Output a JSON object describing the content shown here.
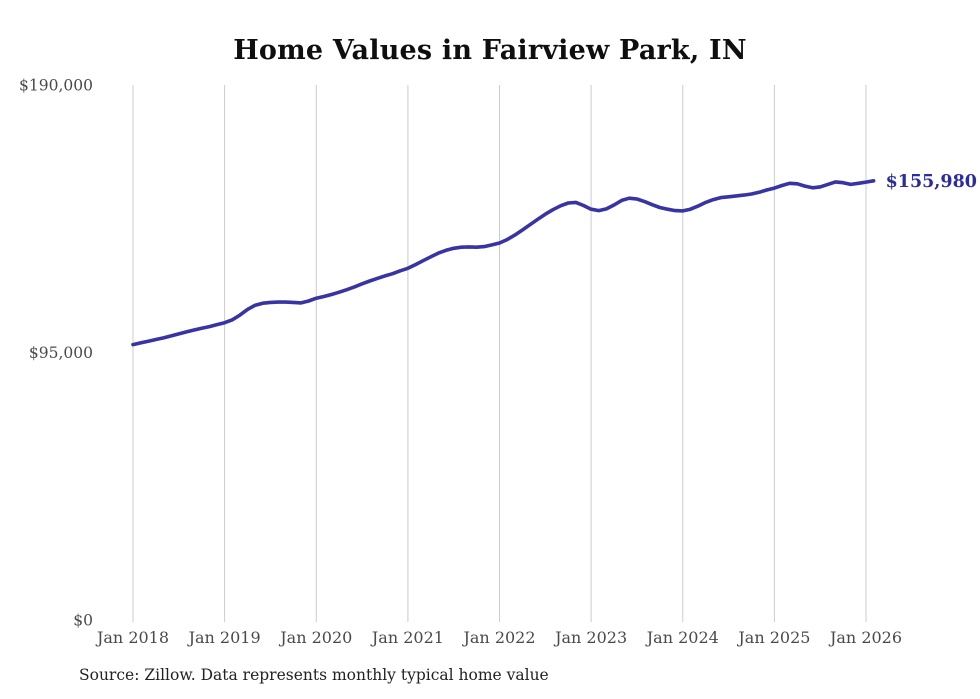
{
  "chart_data": {
    "type": "line",
    "title": "Home Values in Fairview Park, IN",
    "source": "Source: Zillow. Data represents monthly typical home value",
    "end_label": "$155,980",
    "latest_value": 155980,
    "ylim": [
      0,
      190000
    ],
    "grid": "vertical-only",
    "x_tick_labels": [
      "Jan 2018",
      "Jan 2019",
      "Jan 2020",
      "Jan 2021",
      "Jan 2022",
      "Jan 2023",
      "Jan 2024",
      "Jan 2025",
      "Jan 2026"
    ],
    "y_ticks": [
      {
        "label": "$190,000",
        "value": 190000
      },
      {
        "label": "$95,000",
        "value": 95000
      },
      {
        "label": "$0",
        "value": 0
      }
    ],
    "colors": {
      "line": "#3834a4",
      "end_label": "#2c2c9e",
      "grid": "#cccccc",
      "axis_text": "#4a4a4a",
      "title_text": "#0f0f0f",
      "source_text": "#222222"
    },
    "series": [
      {
        "name": "Typical home value (monthly)",
        "start_month": "2018-01",
        "frequency": "monthly",
        "values": [
          97800,
          98400,
          99000,
          99600,
          100200,
          100900,
          101600,
          102300,
          103000,
          103600,
          104200,
          104900,
          105600,
          106600,
          108300,
          110300,
          111800,
          112500,
          112800,
          112900,
          112900,
          112800,
          112600,
          113300,
          114300,
          114900,
          115600,
          116400,
          117300,
          118300,
          119400,
          120400,
          121300,
          122200,
          123000,
          124000,
          124900,
          126200,
          127600,
          129000,
          130300,
          131300,
          132000,
          132400,
          132500,
          132400,
          132600,
          133200,
          133900,
          135100,
          136700,
          138500,
          140400,
          142300,
          144100,
          145700,
          147100,
          148100,
          148300,
          147200,
          145900,
          145400,
          146000,
          147400,
          149000,
          149800,
          149500,
          148600,
          147500,
          146500,
          145900,
          145400,
          145300,
          145900,
          147000,
          148300,
          149300,
          150000,
          150300,
          150600,
          150900,
          151300,
          151900,
          152700,
          153400,
          154300,
          155100,
          154900,
          154100,
          153500,
          153800,
          154700,
          155600,
          155300,
          154700,
          155100,
          155500,
          155980
        ]
      }
    ]
  }
}
